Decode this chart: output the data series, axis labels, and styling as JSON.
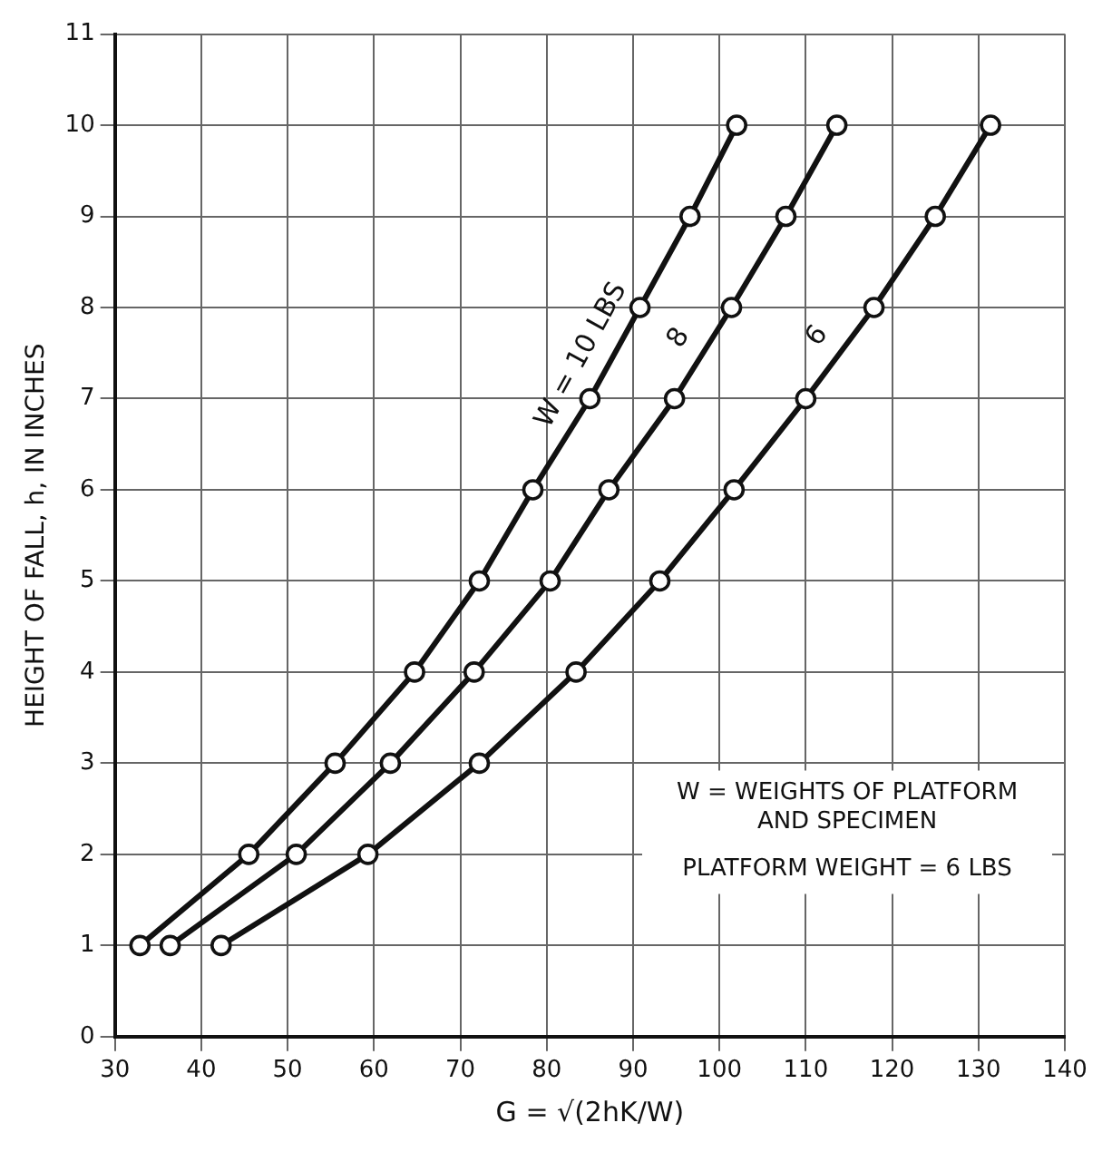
{
  "chart_data": {
    "type": "line",
    "xlabel": "G = √(2hK/W)",
    "ylabel": "HEIGHT OF FALL, h, IN INCHES",
    "xlim": [
      30,
      140
    ],
    "xticks": [
      30,
      40,
      50,
      60,
      70,
      80,
      90,
      100,
      110,
      120,
      130,
      140
    ],
    "ylim": [
      0,
      11
    ],
    "yticks": [
      0,
      1,
      2,
      3,
      4,
      5,
      6,
      7,
      8,
      9,
      10,
      11
    ],
    "grid": true,
    "legend": false,
    "marker": "circle",
    "line_style": "solid",
    "series": [
      {
        "name": "W = 10 LBS",
        "color": "#111111",
        "x": [
          32.9,
          45.5,
          55.5,
          64.7,
          72.2,
          78.4,
          85.0,
          90.8,
          96.6,
          102.0
        ],
        "values": [
          1,
          2,
          3,
          4,
          5,
          6,
          7,
          8,
          9,
          10
        ]
      },
      {
        "name": "8",
        "color": "#111111",
        "x": [
          36.4,
          51.0,
          61.9,
          71.6,
          80.4,
          87.2,
          94.8,
          101.4,
          107.7,
          113.6
        ],
        "values": [
          1,
          2,
          3,
          4,
          5,
          6,
          7,
          8,
          9,
          10
        ]
      },
      {
        "name": "6",
        "color": "#111111",
        "x": [
          42.3,
          59.3,
          72.2,
          83.4,
          93.1,
          101.7,
          110.0,
          117.9,
          125.0,
          131.4
        ],
        "values": [
          1,
          2,
          3,
          4,
          5,
          6,
          7,
          8,
          9,
          10
        ]
      }
    ],
    "annotations": [
      "W = WEIGHTS OF PLATFORM AND SPECIMEN",
      "PLATFORM WEIGHT = 6 LBS"
    ]
  }
}
